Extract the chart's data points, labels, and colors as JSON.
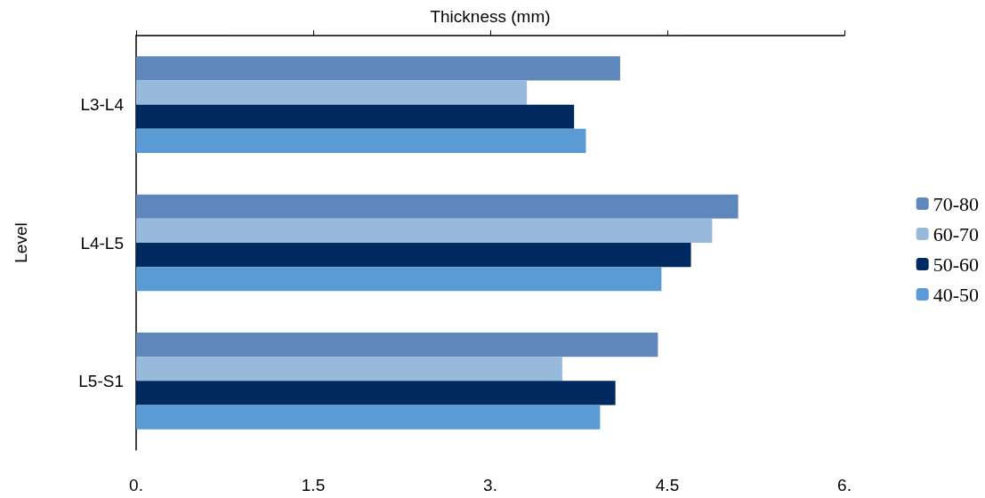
{
  "chart_data": {
    "type": "bar",
    "orientation": "horizontal",
    "xlabel": "Thickness (mm)",
    "ylabel": "Level",
    "categories": [
      "L3-L4",
      "L4-L5",
      "L5-S1"
    ],
    "series": [
      {
        "name": "70-80",
        "color": "#5f87bc",
        "values": [
          4.1,
          5.1,
          4.42
        ]
      },
      {
        "name": "60-70",
        "color": "#96b9dc",
        "values": [
          3.31,
          4.88,
          3.61
        ]
      },
      {
        "name": "50-60",
        "color": "#002a5f",
        "values": [
          3.71,
          4.7,
          4.06
        ]
      },
      {
        "name": "40-50",
        "color": "#5b9bd5",
        "values": [
          3.81,
          4.45,
          3.93
        ]
      }
    ],
    "xlim": [
      0,
      6
    ],
    "xticks": [
      {
        "value": 0,
        "label": "0."
      },
      1.5,
      {
        "value": 3,
        "label": "3."
      },
      4.5,
      {
        "value": 6,
        "label": "6."
      }
    ],
    "grid": false,
    "legend": "right"
  }
}
